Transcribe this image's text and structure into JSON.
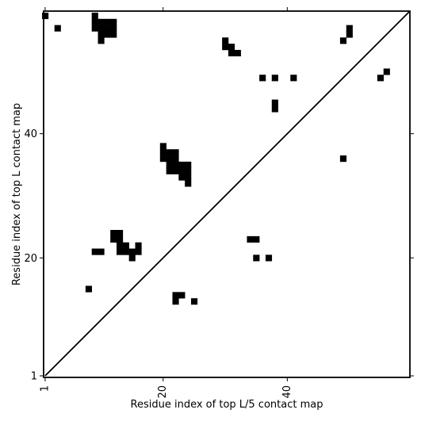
{
  "chart_data": {
    "type": "heatmap",
    "title": "",
    "xlabel": "Residue index of top L/5 contact map",
    "ylabel": "Residue index of top L contact map",
    "xlim": [
      0.75,
      59.75
    ],
    "ylim": [
      0.75,
      59.75
    ],
    "x_ticks": [
      {
        "value": 1,
        "label": "1"
      },
      {
        "value": 20,
        "label": "20"
      },
      {
        "value": 40,
        "label": "40"
      }
    ],
    "y_ticks": [
      {
        "value": 1,
        "label": "1"
      },
      {
        "value": 20,
        "label": "20"
      },
      {
        "value": 40,
        "label": "40"
      }
    ],
    "diagonal": true,
    "grid": false,
    "colors": {
      "contact": "#000000",
      "background": "#ffffff"
    },
    "cells": [
      [
        1,
        59
      ],
      [
        3,
        57
      ],
      [
        9,
        59
      ],
      [
        9,
        58
      ],
      [
        10,
        58
      ],
      [
        11,
        58
      ],
      [
        9,
        57
      ],
      [
        10,
        57
      ],
      [
        11,
        57
      ],
      [
        10,
        56
      ],
      [
        11,
        56
      ],
      [
        12,
        56
      ],
      [
        12,
        58
      ],
      [
        12,
        57
      ],
      [
        10,
        55
      ],
      [
        30,
        55
      ],
      [
        30,
        54
      ],
      [
        31,
        54
      ],
      [
        31,
        53
      ],
      [
        32,
        53
      ],
      [
        36,
        49
      ],
      [
        38,
        49
      ],
      [
        41,
        49
      ],
      [
        38,
        45
      ],
      [
        38,
        44
      ],
      [
        49,
        55
      ],
      [
        50,
        57
      ],
      [
        50,
        56
      ],
      [
        55,
        49
      ],
      [
        56,
        50
      ],
      [
        49,
        36
      ],
      [
        20,
        38
      ],
      [
        20,
        37
      ],
      [
        21,
        37
      ],
      [
        22,
        37
      ],
      [
        20,
        36
      ],
      [
        21,
        36
      ],
      [
        22,
        36
      ],
      [
        21,
        35
      ],
      [
        22,
        35
      ],
      [
        23,
        35
      ],
      [
        24,
        35
      ],
      [
        21,
        34
      ],
      [
        22,
        34
      ],
      [
        23,
        34
      ],
      [
        24,
        34
      ],
      [
        23,
        33
      ],
      [
        24,
        33
      ],
      [
        24,
        32
      ],
      [
        12,
        24
      ],
      [
        13,
        24
      ],
      [
        12,
        23
      ],
      [
        13,
        23
      ],
      [
        13,
        22
      ],
      [
        14,
        22
      ],
      [
        16,
        22
      ],
      [
        13,
        21
      ],
      [
        14,
        21
      ],
      [
        15,
        21
      ],
      [
        16,
        21
      ],
      [
        9,
        21
      ],
      [
        10,
        21
      ],
      [
        15,
        20
      ],
      [
        34,
        23
      ],
      [
        35,
        23
      ],
      [
        35,
        20
      ],
      [
        37,
        20
      ],
      [
        8,
        15
      ],
      [
        22,
        14
      ],
      [
        23,
        14
      ],
      [
        22,
        13
      ],
      [
        25,
        13
      ]
    ]
  }
}
